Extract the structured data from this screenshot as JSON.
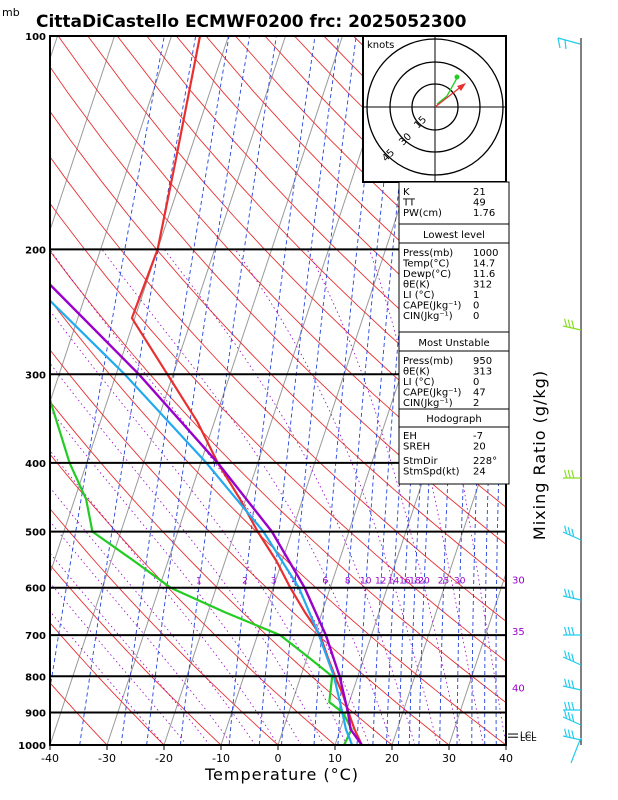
{
  "chart_data": {
    "type": "line",
    "title": "CittaDiCastello ECMWF0200  frc: 2025052300",
    "pressure_unit": "mb",
    "xlabel": "Temperature (°C)",
    "ylabel": "Mixing Ratio (g/kg)",
    "x_ticks": [
      "-40",
      "-30",
      "-20",
      "-10",
      "0",
      "10",
      "20",
      "30",
      "40"
    ],
    "pressure_ticks": [
      "100",
      "200",
      "300",
      "400",
      "500",
      "600",
      "700",
      "800",
      "900",
      "1000"
    ],
    "mixing_ratio_labels": [
      "1",
      "2",
      "3",
      "4",
      "6",
      "8",
      "10",
      "12",
      "14",
      "16",
      "18",
      "20",
      "25",
      "30"
    ],
    "theta_labels": [
      "30",
      "35",
      "40"
    ],
    "lcl_label": "LCL",
    "knots_label": "knots",
    "hodo_rings": [
      "15",
      "30",
      "45"
    ],
    "colors": {
      "environment_temp": "#e83030",
      "dewpoint": "#22cc22",
      "parcel": "#9900cc",
      "virtual": "#22aaee",
      "mixing_ratio": "#2244dd",
      "dry_adiabat": "#e83030",
      "moist_adiabat": "#9900cc",
      "isotherm": "#999999",
      "wind": "#22ccee"
    },
    "series": [
      {
        "name": "Temperature",
        "points": [
          [
            1000,
            14.7
          ],
          [
            950,
            12.5
          ],
          [
            900,
            10.5
          ],
          [
            850,
            8.5
          ],
          [
            800,
            6.0
          ],
          [
            750,
            3.5
          ],
          [
            700,
            1.0
          ],
          [
            650,
            -3.0
          ],
          [
            600,
            -7.0
          ],
          [
            550,
            -11.0
          ],
          [
            500,
            -16.0
          ],
          [
            450,
            -21.0
          ],
          [
            400,
            -27.0
          ],
          [
            350,
            -33.0
          ],
          [
            300,
            -41.0
          ],
          [
            250,
            -50.5
          ],
          [
            200,
            -50.0
          ],
          [
            150,
            -52.0
          ],
          [
            100,
            -55.0
          ]
        ]
      },
      {
        "name": "Dewpoint",
        "points": [
          [
            1000,
            11.6
          ],
          [
            950,
            12.0
          ],
          [
            900,
            9.5
          ],
          [
            870,
            6.5
          ],
          [
            800,
            5.5
          ],
          [
            750,
            0.0
          ],
          [
            700,
            -6.0
          ],
          [
            650,
            -17.0
          ],
          [
            600,
            -28.0
          ],
          [
            550,
            -36.0
          ],
          [
            500,
            -45.0
          ],
          [
            450,
            -48.0
          ],
          [
            400,
            -53.0
          ],
          [
            300,
            -63.0
          ],
          [
            250,
            -68.0
          ],
          [
            200,
            -72.0
          ],
          [
            150,
            -80.0
          ],
          [
            100,
            -86.0
          ]
        ]
      },
      {
        "name": "Parcel",
        "points": [
          [
            1000,
            14.7
          ],
          [
            950,
            11.8
          ],
          [
            900,
            10.4
          ],
          [
            800,
            6.8
          ],
          [
            700,
            2.0
          ],
          [
            600,
            -4.5
          ],
          [
            500,
            -13.5
          ],
          [
            400,
            -27.0
          ],
          [
            300,
            -46.0
          ],
          [
            200,
            -75.0
          ],
          [
            100,
            -115.0
          ]
        ]
      },
      {
        "name": "Virtual",
        "points": [
          [
            1000,
            13.0
          ],
          [
            950,
            11.0
          ],
          [
            900,
            9.4
          ],
          [
            800,
            5.8
          ],
          [
            700,
            0.8
          ],
          [
            600,
            -5.5
          ],
          [
            500,
            -15.0
          ],
          [
            400,
            -29.0
          ],
          [
            300,
            -48.5
          ],
          [
            200,
            -78.0
          ],
          [
            100,
            -118.0
          ]
        ]
      }
    ],
    "indices": {
      "rows": [
        [
          "K",
          "21"
        ],
        [
          "TT",
          "49"
        ],
        [
          "PW(cm)",
          "1.76"
        ]
      ]
    },
    "lowest_level": {
      "title": "Lowest level",
      "rows": [
        [
          "Press(mb)",
          "1000"
        ],
        [
          "Temp(°C)",
          "14.7"
        ],
        [
          "Dewp(°C)",
          "11.6"
        ],
        [
          "θE(K)",
          "312"
        ],
        [
          "LI (°C)",
          "1"
        ],
        [
          "CAPE(Jkg⁻¹)",
          "0"
        ],
        [
          "CIN(Jkg⁻¹)",
          "0"
        ]
      ]
    },
    "most_unstable": {
      "title": "Most Unstable",
      "rows": [
        [
          "Press(mb)",
          "950"
        ],
        [
          "θE(K)",
          "313"
        ],
        [
          "LI (°C)",
          "0"
        ],
        [
          "CAPE(Jkg⁻¹)",
          "47"
        ],
        [
          "CIN(Jkg⁻¹)",
          "2"
        ]
      ]
    },
    "hodograph": {
      "title": "Hodograph",
      "rows": [
        [
          "EH",
          "-7"
        ],
        [
          "SREH",
          "20"
        ]
      ],
      "rows2": [
        [
          "StmDir",
          "228°"
        ],
        [
          "StmSpd(kt)",
          "24"
        ]
      ]
    }
  }
}
